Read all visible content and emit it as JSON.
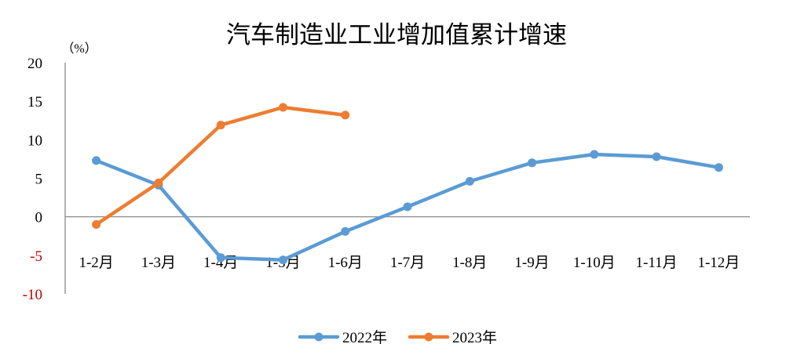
{
  "chart_data": {
    "type": "line",
    "title": "汽车制造业工业增加值累计增速",
    "ylabel": "（%）",
    "ylim": [
      -10,
      20
    ],
    "yticks": [
      20,
      15,
      10,
      5,
      0,
      -5,
      -10
    ],
    "categories": [
      "1-2月",
      "1-3月",
      "1-4月",
      "1-5月",
      "1-6月",
      "1-7月",
      "1-8月",
      "1-9月",
      "1-10月",
      "1-11月",
      "1-12月"
    ],
    "series": [
      {
        "name": "2022年",
        "color": "#5b9bd5",
        "values": [
          7.3,
          4.1,
          -5.3,
          -5.6,
          -1.9,
          1.3,
          4.6,
          7.0,
          8.1,
          7.8,
          6.4
        ]
      },
      {
        "name": "2023年",
        "color": "#ed7d31",
        "values": [
          -1.0,
          4.4,
          11.9,
          14.2,
          13.2,
          null,
          null,
          null,
          null,
          null,
          null
        ]
      }
    ],
    "negative_tick_color": "#c00000",
    "grid": false,
    "legend_position": "bottom"
  }
}
